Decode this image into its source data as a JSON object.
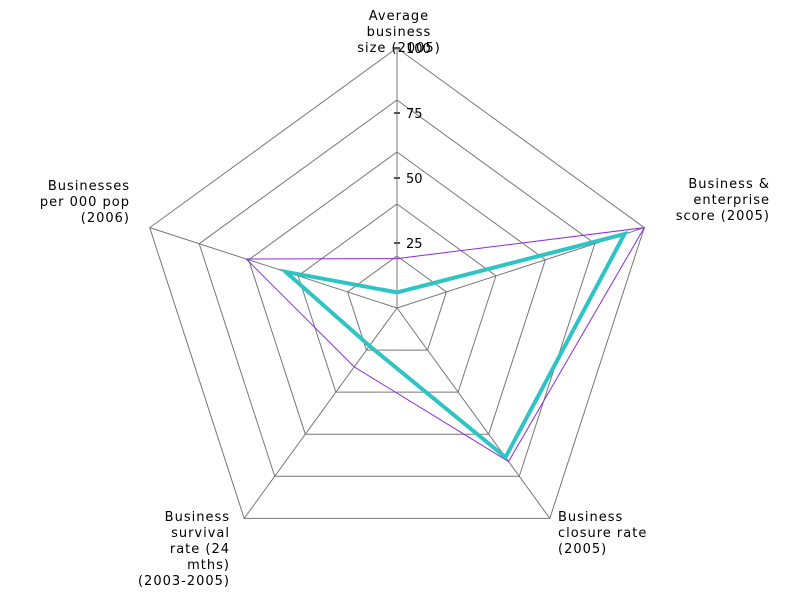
{
  "chart_data": {
    "type": "radar",
    "axes": [
      {
        "label_lines": [
          "Average",
          "business",
          "size (2005)"
        ]
      },
      {
        "label_lines": [
          "Business &",
          "enterprise",
          "score (2005)"
        ]
      },
      {
        "label_lines": [
          "Business",
          "closure rate",
          "(2005)"
        ]
      },
      {
        "label_lines": [
          "Business",
          "survival",
          "rate (24",
          "mths)",
          "(2003-2005)"
        ]
      },
      {
        "label_lines": [
          "Businesses",
          "per 000 pop",
          "(2006)"
        ]
      }
    ],
    "rlim": [
      0,
      100
    ],
    "ticks": [
      25,
      50,
      75,
      100
    ],
    "tick_labels": [
      "25",
      "50",
      "75",
      "100"
    ],
    "grid": true,
    "series": [
      {
        "color": "#8a2be2",
        "line_width": 1,
        "values": [
          19,
          100,
          73,
          28,
          61
        ]
      },
      {
        "color": "#2fc4c4",
        "line_width": 4,
        "values": [
          6,
          92,
          71,
          18,
          45
        ]
      }
    ]
  }
}
